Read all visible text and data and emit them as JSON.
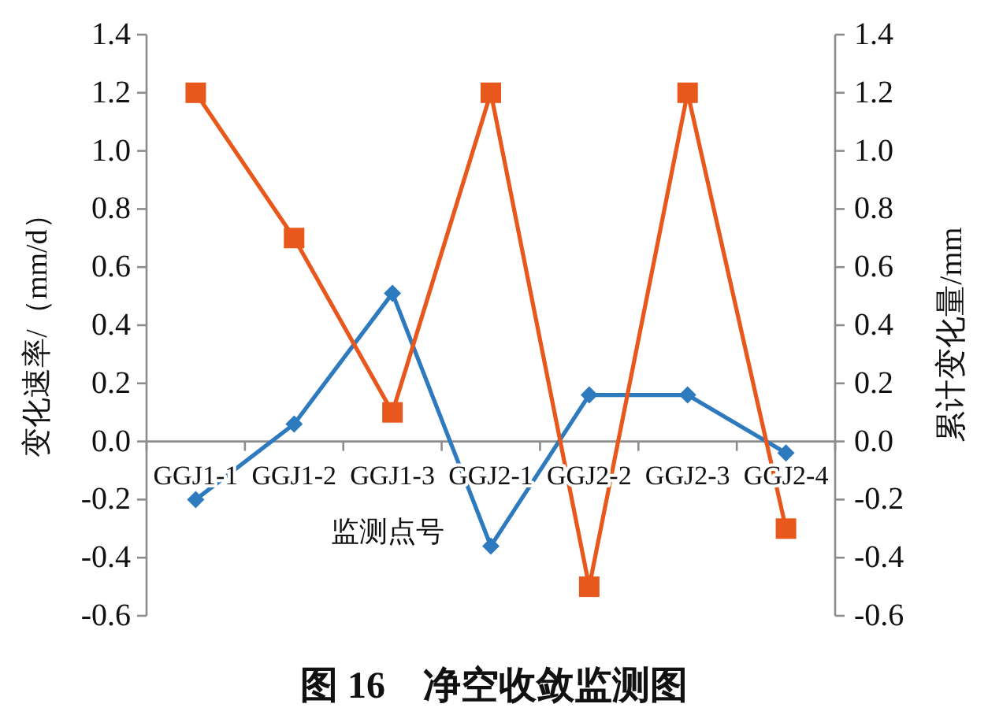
{
  "chart_data": {
    "type": "line",
    "title": "图 16　净空收敛监测图",
    "xlabel": "监测点号",
    "ylabel": "变化速率/（mm/d）",
    "y2label": "累计变化量/mm",
    "categories": [
      "GGJ1-1",
      "GGJ1-2",
      "GGJ1-3",
      "GGJ2-1",
      "GGJ2-2",
      "GGJ2-3",
      "GGJ2-4"
    ],
    "series": [
      {
        "color": "#2e7abf",
        "marker": "diamond",
        "values": [
          -0.2,
          0.06,
          0.51,
          -0.36,
          0.16,
          0.16,
          -0.04
        ]
      },
      {
        "color": "#e8571b",
        "marker": "square",
        "axis": "y2",
        "values": [
          1.2,
          0.7,
          0.1,
          1.2,
          -0.5,
          1.2,
          -0.3
        ]
      }
    ],
    "ylim": [
      -0.6,
      1.4
    ],
    "yticks": [
      -0.6,
      -0.4,
      -0.2,
      {
        "value": 0,
        "label": "0.0"
      },
      0.2,
      0.4,
      0.6,
      0.8,
      {
        "value": 1,
        "label": "1.0"
      },
      1.2,
      1.4
    ],
    "y2lim": [
      -0.6,
      1.4
    ],
    "y2ticks": [
      -0.6,
      -0.4,
      -0.2,
      {
        "value": 0,
        "label": "0.0"
      },
      0.2,
      0.4,
      0.6,
      0.8,
      {
        "value": 1,
        "label": "1.0"
      },
      1.2,
      1.4
    ]
  }
}
